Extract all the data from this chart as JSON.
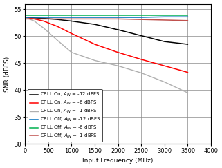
{
  "title": "",
  "xlabel": "Input Frequency (MHz)",
  "ylabel": "SNR (dBFS)",
  "xlim": [
    0,
    4000
  ],
  "ylim": [
    30,
    56
  ],
  "yticks": [
    30,
    35,
    40,
    45,
    50,
    55
  ],
  "xticks": [
    0,
    500,
    1000,
    1500,
    2000,
    2500,
    3000,
    3500,
    4000
  ],
  "series": [
    {
      "label": "CPLL On, $A_{IN}$ = -12 dBFS",
      "color": "#000000",
      "linewidth": 1.1,
      "x": [
        0,
        200,
        400,
        700,
        1000,
        1500,
        2000,
        2500,
        3000,
        3500
      ],
      "y": [
        53.5,
        53.4,
        53.3,
        53.1,
        52.8,
        52.2,
        51.2,
        50.1,
        49.0,
        48.5
      ]
    },
    {
      "label": "CPLL On, $A_{IN}$ = -6 dBFS",
      "color": "#ff0000",
      "linewidth": 1.1,
      "x": [
        0,
        200,
        400,
        700,
        1000,
        1500,
        2000,
        2500,
        3000,
        3500
      ],
      "y": [
        53.5,
        53.2,
        52.8,
        51.8,
        50.5,
        48.5,
        47.0,
        45.7,
        44.5,
        43.3
      ]
    },
    {
      "label": "CPLL On, $A_{IN}$ = -1 dBFS",
      "color": "#b0b0b0",
      "linewidth": 1.0,
      "x": [
        0,
        200,
        400,
        700,
        1000,
        1500,
        2000,
        2500,
        3000,
        3500
      ],
      "y": [
        53.5,
        52.8,
        51.5,
        49.2,
        47.0,
        45.5,
        44.5,
        43.2,
        41.5,
        39.5
      ]
    },
    {
      "label": "CPLL Off, $A_{IN}$ = -12 dBFS",
      "color": "#0070c0",
      "linewidth": 1.1,
      "x": [
        0,
        200,
        400,
        700,
        1000,
        1500,
        2000,
        2500,
        3000,
        3500
      ],
      "y": [
        53.5,
        53.5,
        53.5,
        53.5,
        53.5,
        53.5,
        53.5,
        53.5,
        53.6,
        53.6
      ]
    },
    {
      "label": "CPLL Off, $A_{IN}$ = -6 dBFS",
      "color": "#00b050",
      "linewidth": 1.1,
      "x": [
        0,
        200,
        400,
        700,
        1000,
        1500,
        2000,
        2500,
        3000,
        3500
      ],
      "y": [
        53.9,
        53.9,
        53.9,
        53.9,
        53.9,
        53.9,
        53.9,
        53.9,
        53.9,
        53.9
      ]
    },
    {
      "label": "CPLL Off, $A_{IN}$ = -1 dBFS",
      "color": "#c0504d",
      "linewidth": 1.1,
      "x": [
        0,
        200,
        400,
        700,
        1000,
        1500,
        2000,
        2500,
        3000,
        3500
      ],
      "y": [
        53.2,
        53.2,
        53.2,
        53.2,
        53.2,
        53.2,
        53.2,
        53.1,
        53.0,
        52.9
      ]
    }
  ],
  "legend_fontsize": 5.0,
  "grid_color": "#888888",
  "bg_color": "#ffffff",
  "label_fontsize": 6.5,
  "tick_fontsize": 6.0
}
